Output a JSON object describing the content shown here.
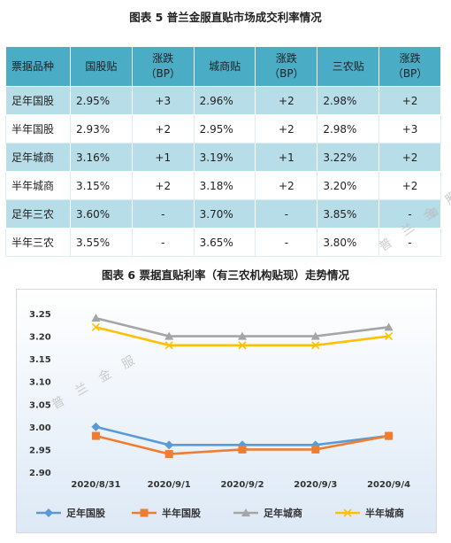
{
  "table": {
    "caption": "图表 5  普兰金服直贴市场成交利率情况",
    "headers": [
      {
        "line1": "票据品种",
        "line2": ""
      },
      {
        "line1": "国股贴",
        "line2": ""
      },
      {
        "line1": "涨跌",
        "line2": "（BP）"
      },
      {
        "line1": "城商贴",
        "line2": ""
      },
      {
        "line1": "涨跌",
        "line2": "（BP）"
      },
      {
        "line1": "三农贴",
        "line2": ""
      },
      {
        "line1": "涨跌",
        "line2": "（BP）"
      }
    ],
    "rows": [
      [
        "足年国股",
        "2.95%",
        "+3",
        "2.96%",
        "+2",
        "2.98%",
        "+2"
      ],
      [
        "半年国股",
        "2.93%",
        "+2",
        "2.95%",
        "+2",
        "2.98%",
        "+3"
      ],
      [
        "足年城商",
        "3.16%",
        "+1",
        "3.19%",
        "+1",
        "3.22%",
        "+2"
      ],
      [
        "半年城商",
        "3.15%",
        "+2",
        "3.18%",
        "+2",
        "3.20%",
        "+2"
      ],
      [
        "足年三农",
        "3.60%",
        "-",
        "3.70%",
        "-",
        "3.85%",
        "-"
      ],
      [
        "半年三农",
        "3.55%",
        "-",
        "3.65%",
        "-",
        "3.80%",
        "-"
      ]
    ]
  },
  "watermark": "普 兰 金 服",
  "watermark_small": "普 兰 金",
  "chart_caption": "图表 6  票据直贴利率（有三农机构贴现）走势情况",
  "chart_data": {
    "type": "line",
    "title": "",
    "xlabel": "",
    "ylabel": "",
    "categories": [
      "2020/8/31",
      "2020/9/1",
      "2020/9/2",
      "2020/9/3",
      "2020/9/4"
    ],
    "ylim": [
      2.9,
      3.25
    ],
    "yticks": [
      "3.25",
      "3.20",
      "3.15",
      "3.10",
      "3.05",
      "3.00",
      "2.95",
      "2.90"
    ],
    "grid": false,
    "legend_position": "bottom",
    "series": [
      {
        "name": "足年国股",
        "color": "#5b9bd5",
        "marker": "diamond",
        "values": [
          3.0,
          2.96,
          2.96,
          2.96,
          2.98
        ]
      },
      {
        "name": "半年国股",
        "color": "#ed7d31",
        "marker": "square",
        "values": [
          2.98,
          2.94,
          2.95,
          2.95,
          2.98
        ]
      },
      {
        "name": "足年城商",
        "color": "#a5a5a5",
        "marker": "triangle",
        "values": [
          3.24,
          3.2,
          3.2,
          3.2,
          3.22
        ]
      },
      {
        "name": "半年城商",
        "color": "#ffc000",
        "marker": "x",
        "values": [
          3.22,
          3.18,
          3.18,
          3.18,
          3.2
        ]
      }
    ]
  }
}
